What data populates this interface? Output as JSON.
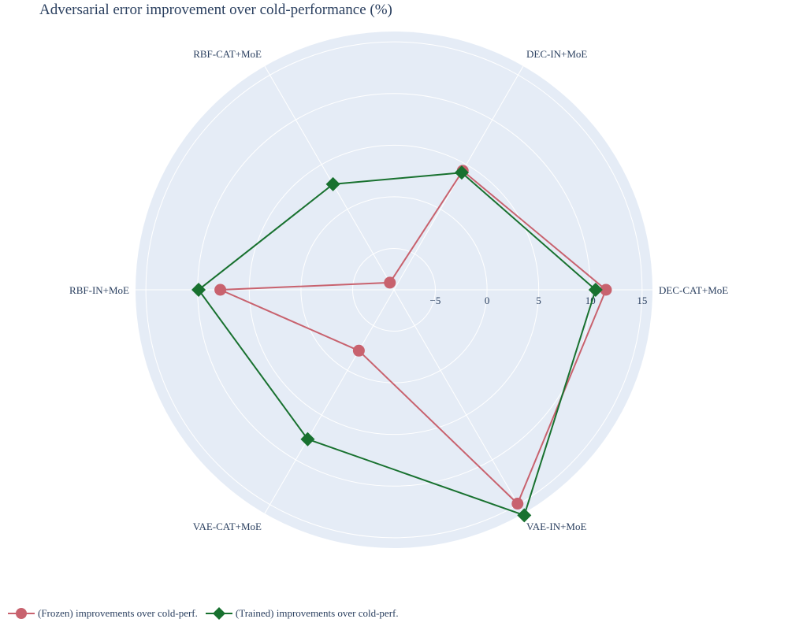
{
  "chart_data": {
    "type": "radar",
    "title": "Adversarial error improvement over cold-performance (%)",
    "categories": [
      "DEC-CAT+MoE",
      "DEC-IN+MoE",
      "RBF-CAT+MoE",
      "RBF-IN+MoE",
      "VAE-CAT+MoE",
      "VAE-IN+MoE"
    ],
    "radial_range": [
      -9,
      16
    ],
    "radial_ticks": [
      -5,
      0,
      5,
      10,
      15
    ],
    "radial_tick_labels": [
      "−5",
      "0",
      "5",
      "10",
      "15"
    ],
    "series": [
      {
        "name": "(Frozen) improvements over cold-perf.",
        "values": [
          11.5,
          4.3,
          -8.2,
          7.8,
          -2.2,
          14.9
        ],
        "color": "#c8626e",
        "marker": "circle"
      },
      {
        "name": "(Trained) improvements over cold-perf.",
        "values": [
          10.5,
          4.1,
          2.8,
          9.9,
          7.7,
          16.2
        ],
        "color": "#18712f",
        "marker": "diamond"
      }
    ],
    "legend_position": "bottom-left",
    "grid": true
  },
  "colors": {
    "polar_background": "#e5ecf6",
    "grid": "#ffffff",
    "text": "#2a3f5f"
  }
}
